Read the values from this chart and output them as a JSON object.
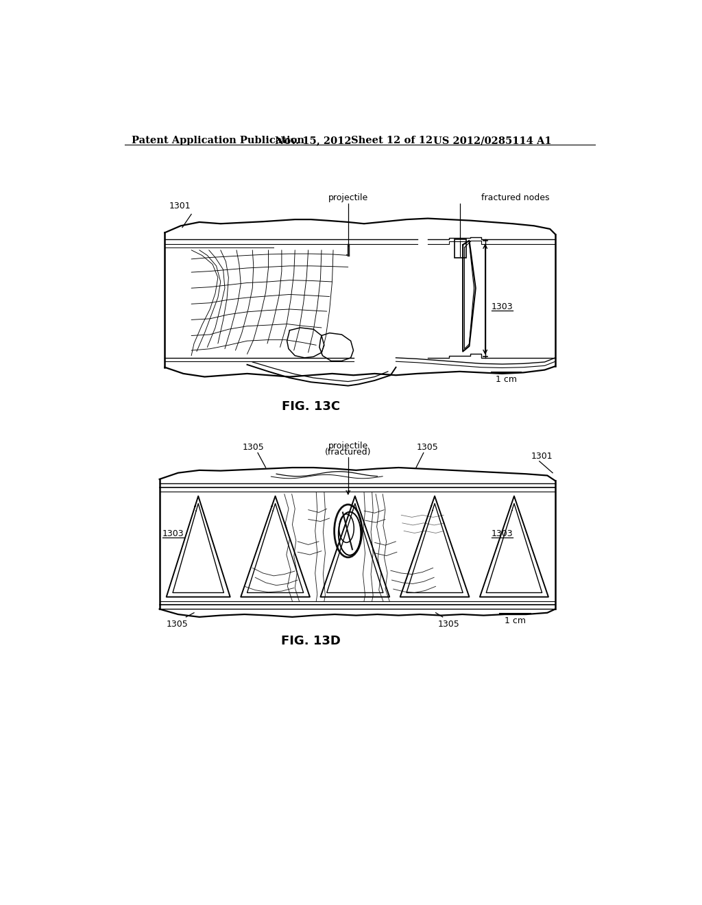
{
  "background_color": "#ffffff",
  "header_text": "Patent Application Publication",
  "header_date": "Nov. 15, 2012",
  "header_sheet": "Sheet 12 of 12",
  "header_patent": "US 2012/0285114 A1",
  "fig13c_label": "FIG. 13C",
  "fig13d_label": "FIG. 13D",
  "label_1301_13c": "1301",
  "label_1303_13c": "1303",
  "label_projectile_13c": "projectile",
  "label_fractured_nodes": "fractured nodes",
  "label_1cm_13c": "1 cm",
  "label_projectile_13d": "projectile\n(fractured)",
  "label_1305a": "1305",
  "label_1305b": "1305",
  "label_1305c": "1305",
  "label_1305d": "1305",
  "label_1301_13d": "1301",
  "label_1303_13d_left": "1303",
  "label_1303_13d_right": "1303",
  "label_1cm_13d": "1 cm",
  "text_color": "#000000",
  "line_color": "#000000",
  "font_size_header": 10.5,
  "font_size_labels": 9,
  "font_size_fig": 13
}
